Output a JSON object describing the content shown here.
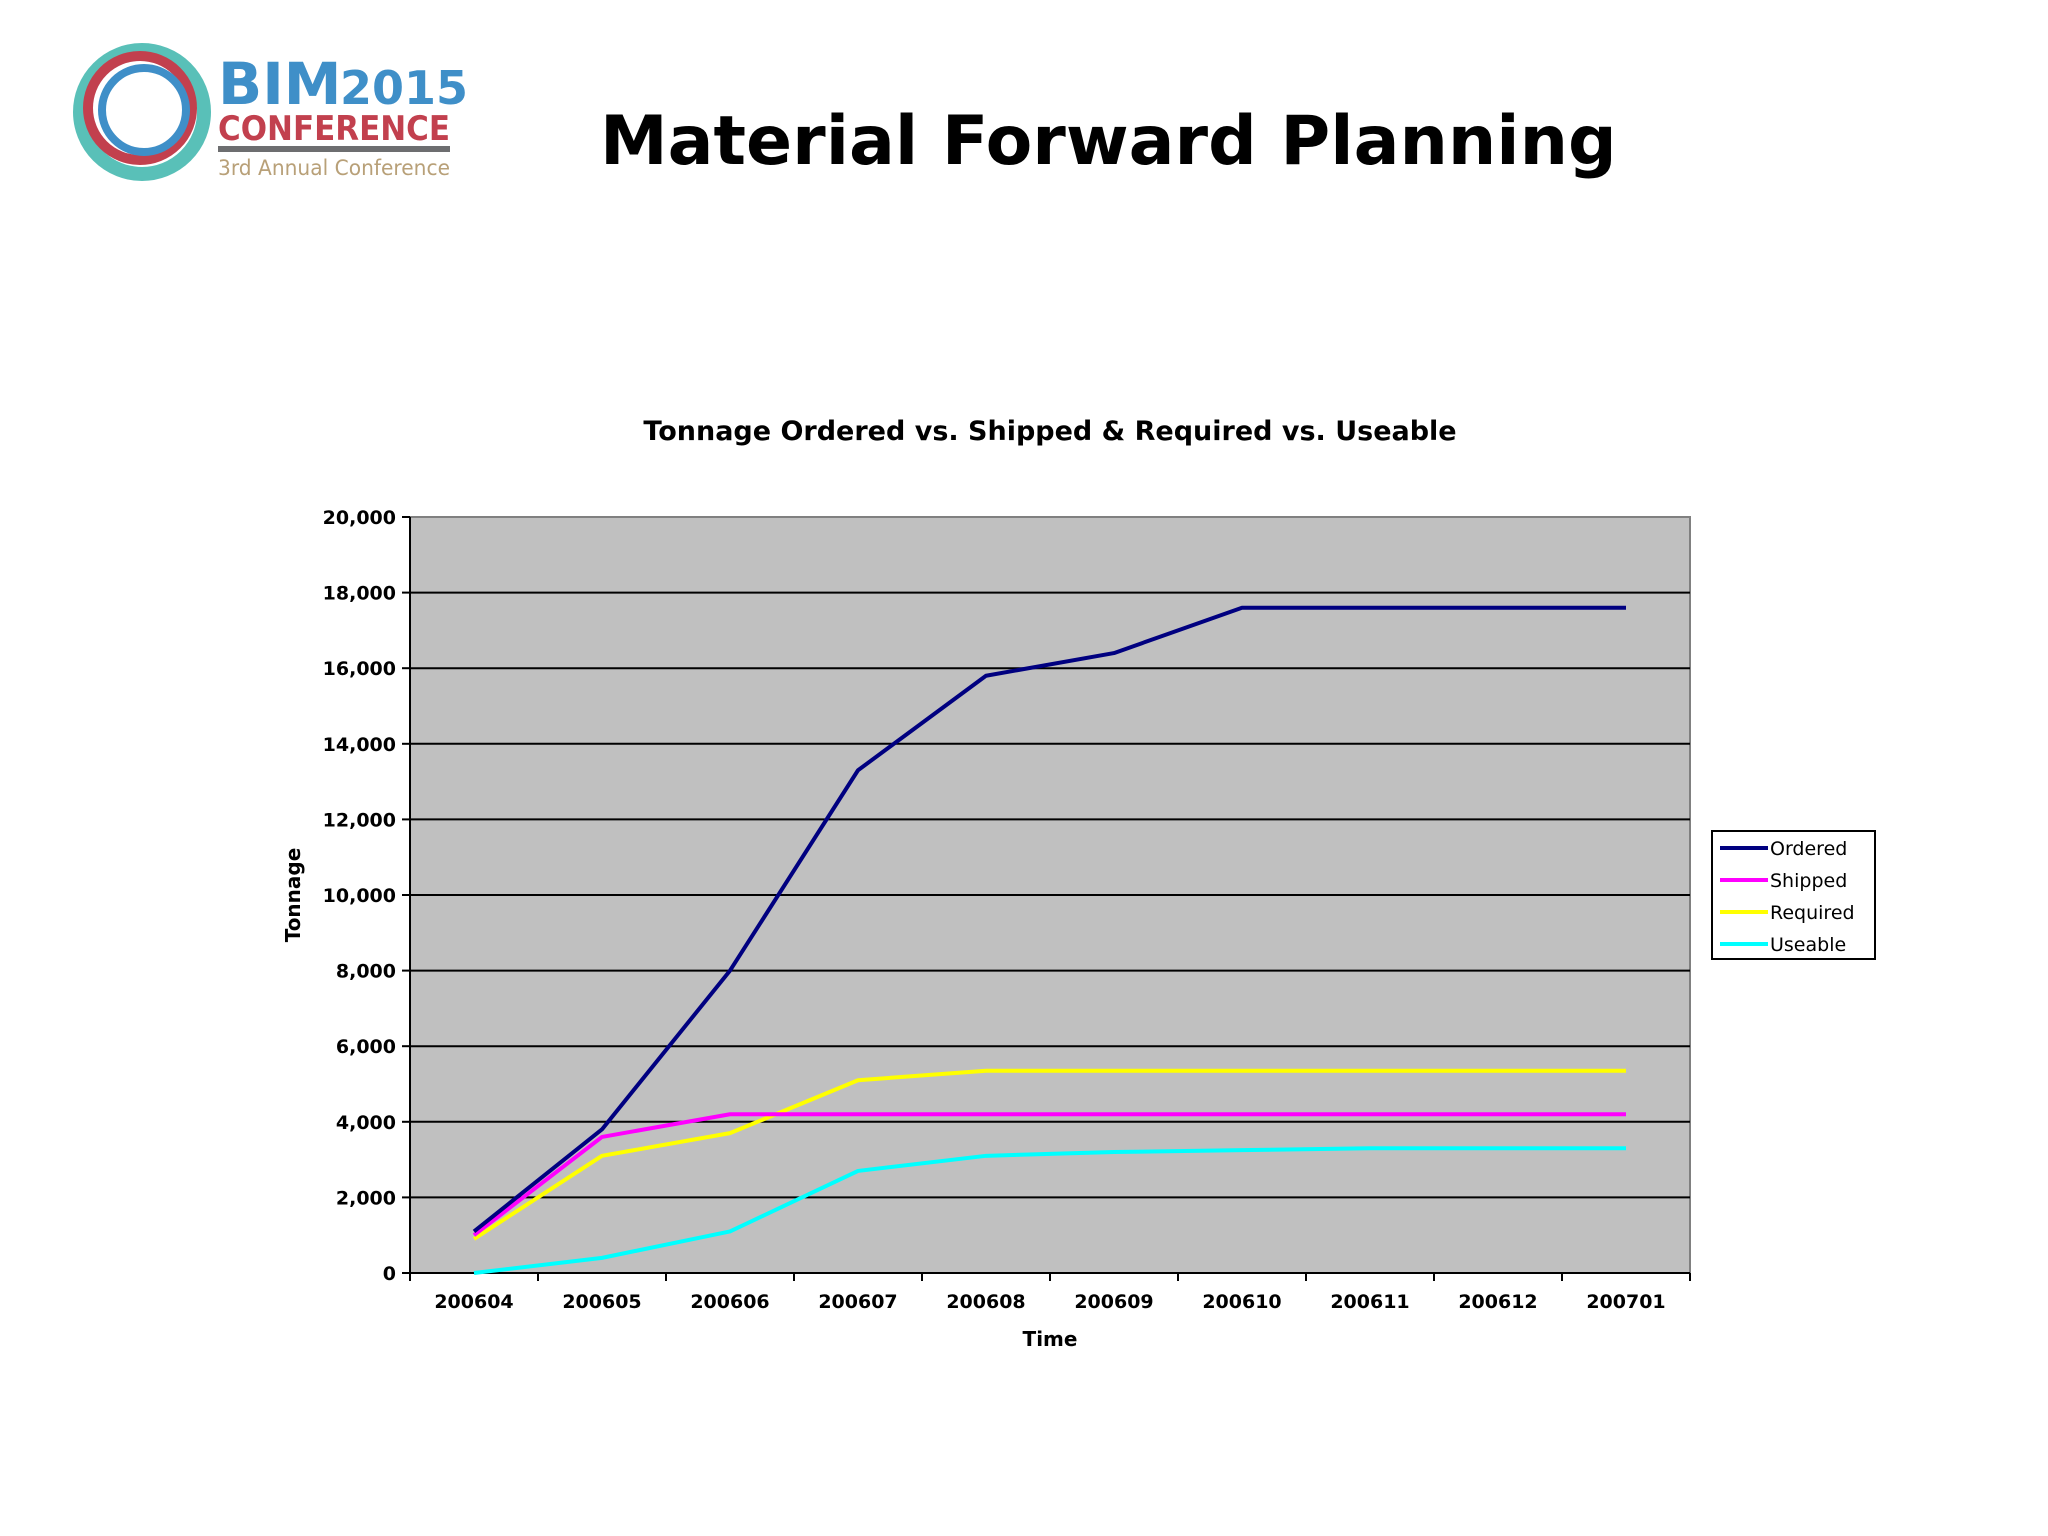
{
  "logo": {
    "line1_a": "BIM",
    "line1_b": "2015",
    "line2": "CONFERENCE",
    "line3": "3rd Annual Conference",
    "colors": {
      "blue": "#3f8fc8",
      "red": "#c2404e",
      "teal": "#59c0b8",
      "gray": "#6d6e70",
      "tan": "#b8a078"
    }
  },
  "slide": {
    "title": "Material Forward Planning"
  },
  "chart_data": {
    "type": "line",
    "title": "Tonnage Ordered vs. Shipped & Required vs. Useable",
    "xlabel": "Time",
    "ylabel": "Tonnage",
    "categories": [
      "200604",
      "200605",
      "200606",
      "200607",
      "200608",
      "200609",
      "200610",
      "200611",
      "200612",
      "200701"
    ],
    "ylim": [
      0,
      20000
    ],
    "yticks": [
      0,
      2000,
      4000,
      6000,
      8000,
      10000,
      12000,
      14000,
      16000,
      18000,
      20000
    ],
    "ytick_labels": [
      "0",
      "2,000",
      "4,000",
      "6,000",
      "8,000",
      "10,000",
      "12,000",
      "14,000",
      "16,000",
      "18,000",
      "20,000"
    ],
    "grid": true,
    "plot_background": "#c0c0c0",
    "legend_position": "right",
    "series": [
      {
        "name": "Ordered",
        "color": "#000080",
        "values": [
          1100,
          3800,
          8000,
          13300,
          15800,
          16400,
          17600,
          17600,
          17600,
          17600
        ]
      },
      {
        "name": "Shipped",
        "color": "#ff00ff",
        "values": [
          1000,
          3600,
          4200,
          4200,
          4200,
          4200,
          4200,
          4200,
          4200,
          4200
        ]
      },
      {
        "name": "Required",
        "color": "#ffff00",
        "values": [
          900,
          3100,
          3700,
          5100,
          5350,
          5350,
          5350,
          5350,
          5350,
          5350
        ]
      },
      {
        "name": "Useable",
        "color": "#00ffff",
        "values": [
          0,
          400,
          1100,
          2700,
          3100,
          3200,
          3250,
          3300,
          3300,
          3300
        ]
      }
    ]
  }
}
